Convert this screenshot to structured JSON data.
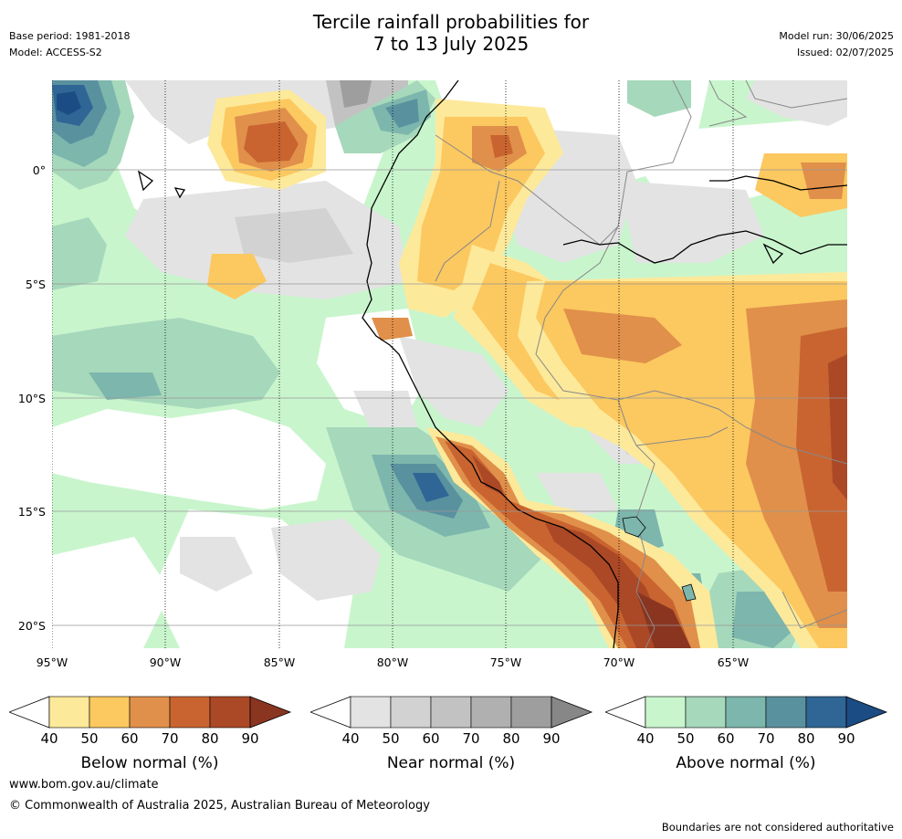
{
  "header": {
    "title_line1": "Tercile rainfall probabilities for",
    "title_line2": "7 to 13 July 2025",
    "base_period": "Base period: 1981-2018",
    "model": "Model: ACCESS-S2",
    "model_run": "Model run: 30/06/2025",
    "issued": "Issued: 02/07/2025"
  },
  "map": {
    "lat_labels": [
      "0°",
      "5°S",
      "10°S",
      "15°S",
      "20°S"
    ],
    "lon_labels": [
      "95°W",
      "90°W",
      "85°W",
      "80°W",
      "75°W",
      "70°W",
      "65°W"
    ]
  },
  "colorbars": [
    {
      "label": "Below normal (%)",
      "ticks": [
        "40",
        "50",
        "60",
        "70",
        "80",
        "90"
      ],
      "colors": [
        "#fde99a",
        "#fcc860",
        "#e0904a",
        "#c96430",
        "#ab4826",
        "#8a3520"
      ]
    },
    {
      "label": "Near normal (%)",
      "ticks": [
        "40",
        "50",
        "60",
        "70",
        "80",
        "90"
      ],
      "colors": [
        "#e3e3e3",
        "#d2d2d2",
        "#c2c2c2",
        "#b0b0b0",
        "#9e9e9e",
        "#878787"
      ]
    },
    {
      "label": "Above normal (%)",
      "ticks": [
        "40",
        "50",
        "60",
        "70",
        "80",
        "90"
      ],
      "colors": [
        "#c9f5cd",
        "#a6d8bb",
        "#7db6ad",
        "#5a919f",
        "#2f6695",
        "#1b4d84"
      ]
    }
  ],
  "footer": {
    "website": "www.bom.gov.au/climate",
    "copyright": "© Commonwealth of Australia 2025, Australian Bureau of Meteorology",
    "disclaimer": "Boundaries are not considered authoritative"
  }
}
